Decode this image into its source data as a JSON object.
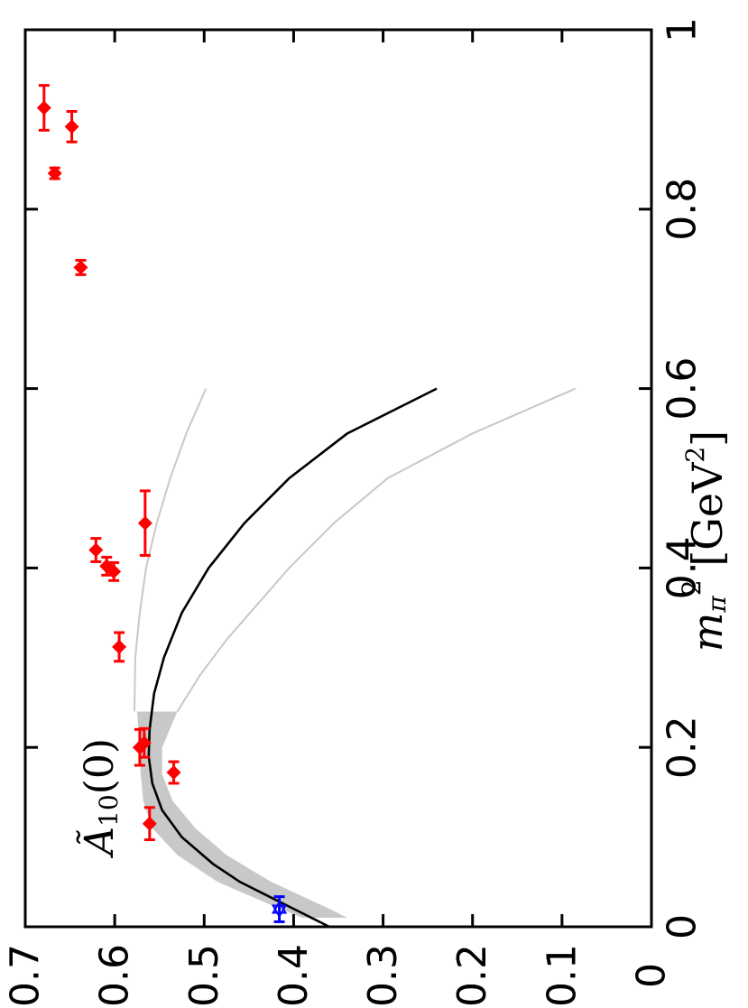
{
  "chart_data": {
    "type": "scatter",
    "orientation": "rotated-90-ccw",
    "title": "",
    "annotation": {
      "text": "Ã",
      "sub": "10",
      "arg": "(0)"
    },
    "xlabel": {
      "main": "m",
      "sub": "π",
      "sup": "2",
      "unit_pre": " [GeV",
      "unit_sup": "2",
      "unit_post": "]"
    },
    "ylabel": "",
    "xlim": [
      0,
      1
    ],
    "ylim": [
      0,
      0.7
    ],
    "xticks": [
      0,
      0.2,
      0.4,
      0.6,
      0.8,
      1
    ],
    "xtick_labels": [
      "0",
      "0.2",
      "0.4",
      "0.6",
      "0.8",
      "1"
    ],
    "yticks": [
      0,
      0.1,
      0.2,
      0.3,
      0.4,
      0.5,
      0.6,
      0.7
    ],
    "ytick_labels": [
      "0",
      "0.1",
      "0.2",
      "0.3",
      "0.4",
      "0.5",
      "0.6",
      "0.7"
    ],
    "grid": false,
    "series": [
      {
        "marker": "diamond",
        "color": "#ff0000",
        "points": [
          {
            "x": 0.115,
            "y": 0.561,
            "xerr": 0.018
          },
          {
            "x": 0.172,
            "y": 0.534,
            "xerr": 0.012
          },
          {
            "x": 0.2,
            "y": 0.572,
            "xerr": 0.02
          },
          {
            "x": 0.205,
            "y": 0.567,
            "xerr": 0.016
          },
          {
            "x": 0.312,
            "y": 0.595,
            "xerr": 0.016
          },
          {
            "x": 0.396,
            "y": 0.601,
            "xerr": 0.01
          },
          {
            "x": 0.402,
            "y": 0.609,
            "xerr": 0.01
          },
          {
            "x": 0.42,
            "y": 0.621,
            "xerr": 0.013
          },
          {
            "x": 0.45,
            "y": 0.566,
            "xerr": 0.036
          },
          {
            "x": 0.735,
            "y": 0.638,
            "xerr": 0.008
          },
          {
            "x": 0.84,
            "y": 0.667,
            "xerr": 0.006
          },
          {
            "x": 0.892,
            "y": 0.648,
            "xerr": 0.017
          },
          {
            "x": 0.913,
            "y": 0.679,
            "xerr": 0.025
          }
        ]
      },
      {
        "marker": "star",
        "color": "#0000ff",
        "points": [
          {
            "x": 0.0196,
            "y": 0.416,
            "xerr": 0.014
          }
        ]
      }
    ],
    "fit": {
      "center_color": "#000000",
      "band_color": "#c8c8c8",
      "bound_color": "#c8c8c8",
      "center": [
        [
          0.0,
          0.36
        ],
        [
          0.01,
          0.38
        ],
        [
          0.02,
          0.4
        ],
        [
          0.03,
          0.42
        ],
        [
          0.05,
          0.46
        ],
        [
          0.07,
          0.49
        ],
        [
          0.1,
          0.525
        ],
        [
          0.13,
          0.547
        ],
        [
          0.16,
          0.558
        ],
        [
          0.19,
          0.562
        ],
        [
          0.22,
          0.561
        ],
        [
          0.26,
          0.556
        ],
        [
          0.3,
          0.545
        ],
        [
          0.35,
          0.525
        ],
        [
          0.4,
          0.495
        ],
        [
          0.45,
          0.455
        ],
        [
          0.5,
          0.405
        ],
        [
          0.55,
          0.34
        ],
        [
          0.6,
          0.24
        ]
      ],
      "band_upper": [
        [
          0.01,
          0.39
        ],
        [
          0.02,
          0.415
        ],
        [
          0.05,
          0.485
        ],
        [
          0.08,
          0.53
        ],
        [
          0.11,
          0.558
        ],
        [
          0.14,
          0.568
        ],
        [
          0.17,
          0.571
        ],
        [
          0.2,
          0.572
        ],
        [
          0.24,
          0.575
        ]
      ],
      "band_lower": [
        [
          0.01,
          0.34
        ],
        [
          0.02,
          0.36
        ],
        [
          0.05,
          0.425
        ],
        [
          0.08,
          0.475
        ],
        [
          0.11,
          0.51
        ],
        [
          0.14,
          0.535
        ],
        [
          0.17,
          0.547
        ],
        [
          0.2,
          0.547
        ],
        [
          0.24,
          0.53
        ]
      ],
      "upper": [
        [
          0.24,
          0.578
        ],
        [
          0.3,
          0.577
        ],
        [
          0.35,
          0.572
        ],
        [
          0.4,
          0.565
        ],
        [
          0.45,
          0.553
        ],
        [
          0.5,
          0.538
        ],
        [
          0.55,
          0.52
        ],
        [
          0.6,
          0.498
        ]
      ],
      "lower": [
        [
          0.24,
          0.53
        ],
        [
          0.28,
          0.505
        ],
        [
          0.32,
          0.475
        ],
        [
          0.36,
          0.44
        ],
        [
          0.4,
          0.405
        ],
        [
          0.45,
          0.355
        ],
        [
          0.5,
          0.295
        ],
        [
          0.55,
          0.2
        ],
        [
          0.6,
          0.085
        ]
      ]
    }
  }
}
